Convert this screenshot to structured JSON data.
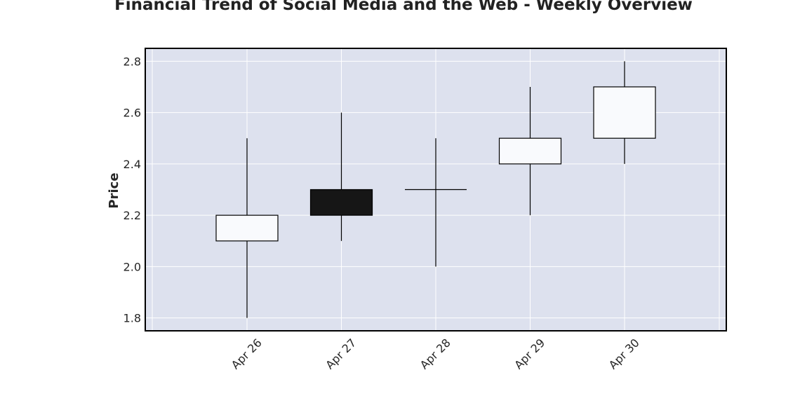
{
  "chart_data": {
    "type": "candlestick",
    "title": "Financial Trend of Social Media and the Web - Weekly Overview",
    "xlabel": "",
    "ylabel": "Price",
    "categories": [
      "Apr 26",
      "Apr 27",
      "Apr 28",
      "Apr 29",
      "Apr 30"
    ],
    "open": [
      2.1,
      2.3,
      2.3,
      2.4,
      2.5
    ],
    "high": [
      2.5,
      2.6,
      2.5,
      2.7,
      2.8
    ],
    "low": [
      1.8,
      2.1,
      2.0,
      2.2,
      2.4
    ],
    "close": [
      2.2,
      2.2,
      2.3,
      2.5,
      2.7
    ],
    "y_ticks": [
      "1.8",
      "2.0",
      "2.2",
      "2.4",
      "2.6",
      "2.8"
    ],
    "ylim": [
      1.75,
      2.85
    ],
    "grid": true,
    "colors": {
      "plot_background": "#dde1ee",
      "grid": "#ffffff",
      "up_fill": "#f9fafd",
      "down_fill": "#161616",
      "wick": "#000000",
      "frame": "#000000"
    }
  }
}
